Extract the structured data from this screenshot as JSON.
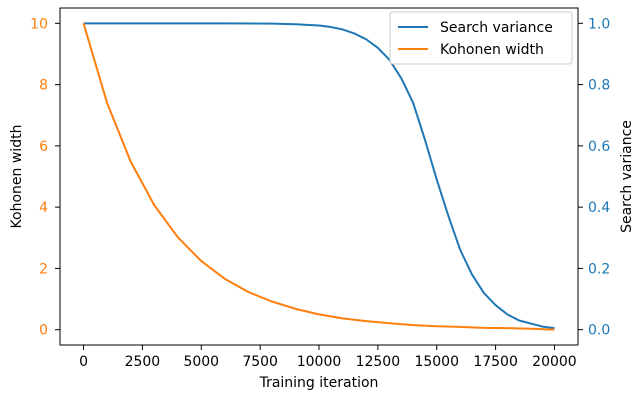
{
  "chart_data": {
    "type": "line",
    "xlabel": "Training iteration",
    "ylabel_left": "Kohonen width",
    "ylabel_right": "Search variance",
    "xlim": [
      -1000,
      21000
    ],
    "ylim_left": [
      -0.5,
      10.5
    ],
    "ylim_right": [
      -0.05,
      1.05
    ],
    "x_ticks": [
      0,
      2500,
      5000,
      7500,
      10000,
      12500,
      15000,
      17500,
      20000
    ],
    "x_tick_labels": [
      "0",
      "2500",
      "5000",
      "7500",
      "10000",
      "12500",
      "15000",
      "17500",
      "20000"
    ],
    "y_left_ticks": [
      0,
      2,
      4,
      6,
      8,
      10
    ],
    "y_left_tick_labels": [
      "0",
      "2",
      "4",
      "6",
      "8",
      "10"
    ],
    "y_right_ticks": [
      0.0,
      0.2,
      0.4,
      0.6,
      0.8,
      1.0
    ],
    "y_right_tick_labels": [
      "0.0",
      "0.2",
      "0.4",
      "0.6",
      "0.8",
      "1.0"
    ],
    "grid": false,
    "legend_position": "top-right",
    "left_axis_color": "#ff7f0e",
    "right_axis_color": "#1f77b4",
    "series": [
      {
        "name": "Search variance",
        "axis": "right",
        "color": "#1f77b4",
        "x": [
          0,
          2000,
          4000,
          6000,
          8000,
          9000,
          10000,
          10500,
          11000,
          11500,
          12000,
          12500,
          13000,
          13500,
          14000,
          14500,
          15000,
          15500,
          16000,
          16500,
          17000,
          17500,
          18000,
          18500,
          19000,
          19500,
          20000
        ],
        "y": [
          1.0,
          1.0,
          1.0,
          1.0,
          0.999,
          0.997,
          0.993,
          0.988,
          0.98,
          0.967,
          0.948,
          0.92,
          0.88,
          0.82,
          0.74,
          0.62,
          0.49,
          0.37,
          0.26,
          0.18,
          0.12,
          0.08,
          0.05,
          0.03,
          0.02,
          0.01,
          0.005
        ]
      },
      {
        "name": "Kohonen width",
        "axis": "left",
        "color": "#ff7f0e",
        "x": [
          0,
          1000,
          2000,
          3000,
          4000,
          5000,
          6000,
          7000,
          8000,
          9000,
          10000,
          11000,
          12000,
          13000,
          14000,
          15000,
          16000,
          17000,
          18000,
          19000,
          20000
        ],
        "y": [
          10.0,
          7.4,
          5.49,
          4.07,
          3.02,
          2.24,
          1.66,
          1.23,
          0.92,
          0.68,
          0.5,
          0.37,
          0.28,
          0.21,
          0.15,
          0.11,
          0.09,
          0.06,
          0.05,
          0.03,
          0.0
        ]
      }
    ]
  }
}
